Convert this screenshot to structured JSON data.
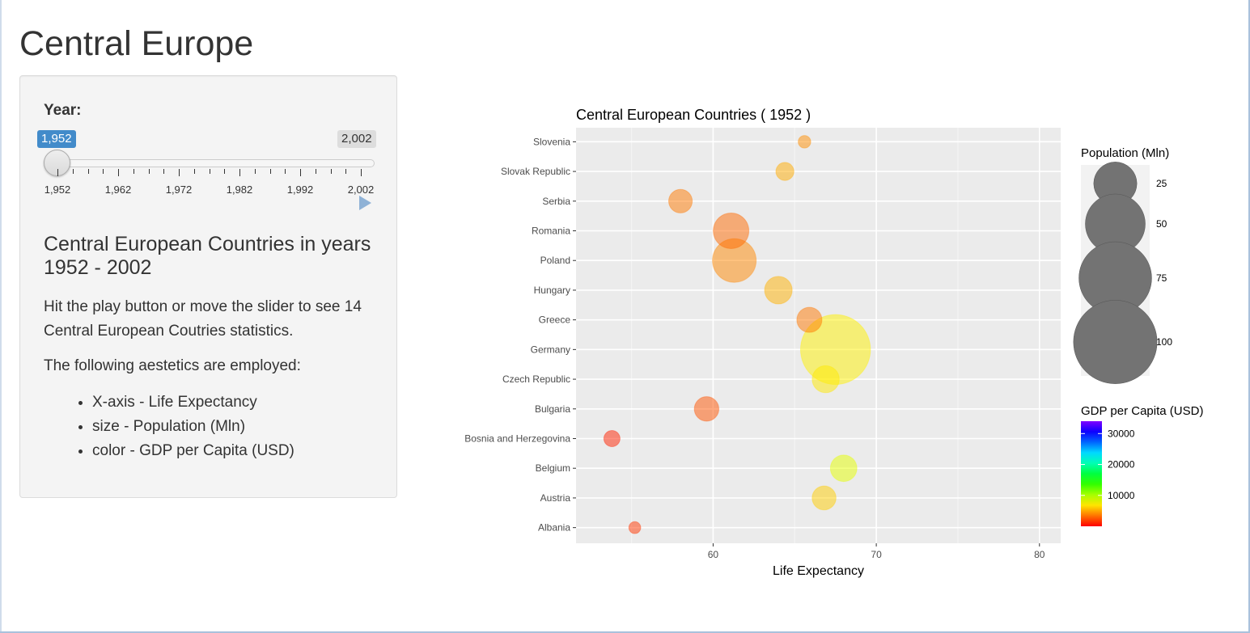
{
  "page": {
    "title": "Central Europe"
  },
  "sidebar": {
    "year_label": "Year:",
    "slider": {
      "min_badge": "1,952",
      "max_badge": "2,002",
      "value": 1952,
      "min": 1952,
      "max": 2002,
      "tick_labels": [
        "1,952",
        "1,962",
        "1,972",
        "1,982",
        "1,992",
        "2,002"
      ],
      "play_icon": "play-icon"
    },
    "subtitle": "Central European Countries in years 1952 - 2002",
    "description": "Hit the play button or move the slider to see 14 Central European Coutries statistics.",
    "aesthetics_intro": "The following aestetics are employed:",
    "aesthetics": [
      "X-axis - Life Expectancy",
      "size - Population (Mln)",
      "color - GDP per Capita (USD)"
    ]
  },
  "colors": {
    "accent": "#428bca",
    "panel_bg": "#ebebeb",
    "grid": "#ffffff"
  },
  "chart_data": {
    "type": "scatter",
    "title": "Central European Countries ( 1952 )",
    "xlabel": "Life Expectancy",
    "ylabel": "",
    "xlim": [
      51.6,
      81.3
    ],
    "xticks": [
      60,
      70,
      80
    ],
    "grid": true,
    "categories": [
      "Albania",
      "Austria",
      "Belgium",
      "Bosnia and Herzegovina",
      "Bulgaria",
      "Czech Republic",
      "Germany",
      "Greece",
      "Hungary",
      "Poland",
      "Romania",
      "Serbia",
      "Slovak Republic",
      "Slovenia"
    ],
    "points": [
      {
        "country": "Albania",
        "x": 55.2,
        "pop": 1.3,
        "gdp": 1600
      },
      {
        "country": "Austria",
        "x": 66.8,
        "pop": 6.9,
        "gdp": 6100
      },
      {
        "country": "Belgium",
        "x": 68.0,
        "pop": 8.7,
        "gdp": 8300
      },
      {
        "country": "Bosnia and Herzegovina",
        "x": 53.8,
        "pop": 2.8,
        "gdp": 970
      },
      {
        "country": "Bulgaria",
        "x": 59.6,
        "pop": 7.3,
        "gdp": 2450
      },
      {
        "country": "Czech Republic",
        "x": 66.9,
        "pop": 9.1,
        "gdp": 6900
      },
      {
        "country": "Germany",
        "x": 67.5,
        "pop": 69.1,
        "gdp": 7150
      },
      {
        "country": "Greece",
        "x": 65.9,
        "pop": 7.7,
        "gdp": 3550
      },
      {
        "country": "Hungary",
        "x": 64.0,
        "pop": 9.5,
        "gdp": 5270
      },
      {
        "country": "Poland",
        "x": 61.3,
        "pop": 25.7,
        "gdp": 4030
      },
      {
        "country": "Romania",
        "x": 61.1,
        "pop": 16.6,
        "gdp": 3150
      },
      {
        "country": "Serbia",
        "x": 58.0,
        "pop": 6.7,
        "gdp": 3580
      },
      {
        "country": "Slovak Republic",
        "x": 64.4,
        "pop": 3.6,
        "gdp": 5070
      },
      {
        "country": "Slovenia",
        "x": 65.6,
        "pop": 1.5,
        "gdp": 4220
      }
    ],
    "legend_size": {
      "title": "Population (Mln)",
      "values": [
        25,
        50,
        75,
        100
      ]
    },
    "legend_color": {
      "title": "GDP per Capita (USD)",
      "ticks": [
        10000,
        20000,
        30000
      ],
      "range": [
        0,
        34000
      ]
    },
    "legend_placement": "right"
  }
}
